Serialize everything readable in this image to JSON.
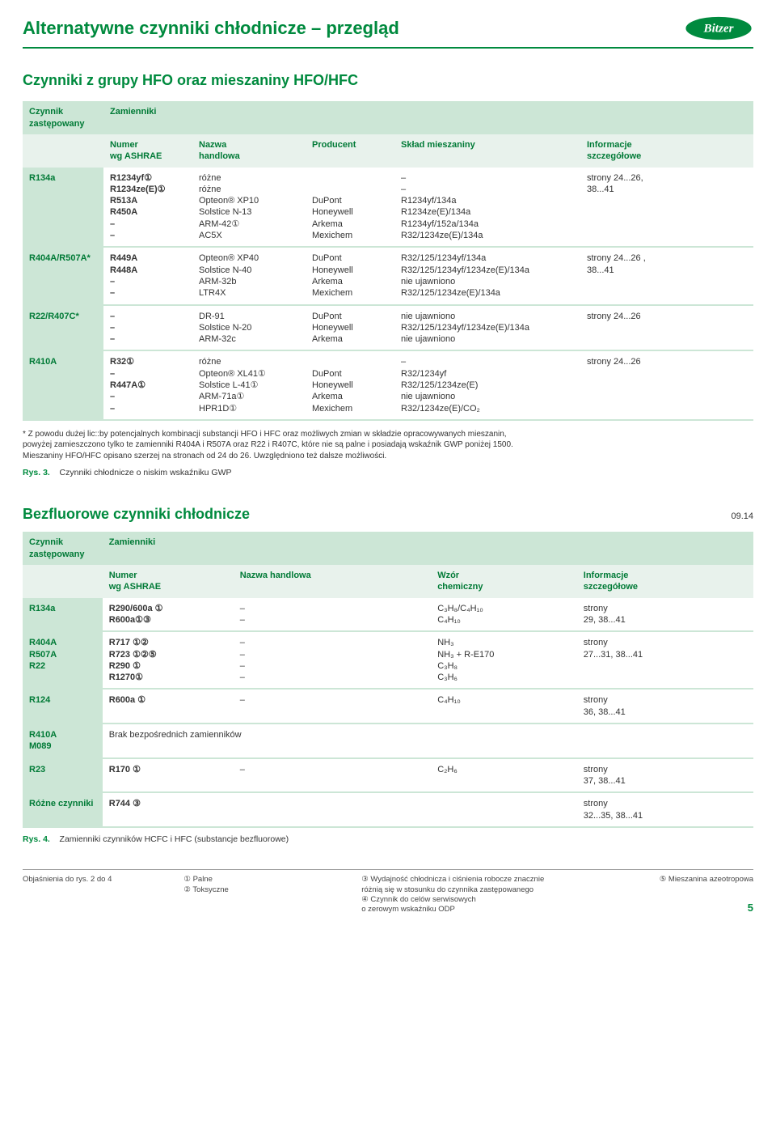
{
  "colors": {
    "accent": "#008a3e",
    "header_bg": "#cce6d6",
    "header_text": "#007a36",
    "row_border": "#cce6d6",
    "text": "#333333",
    "background": "#ffffff"
  },
  "typography": {
    "title_fontsize": 22,
    "section_fontsize": 18,
    "body_fontsize": 11,
    "footnote_fontsize": 10,
    "footer_fontsize": 9.5
  },
  "logo_name": "Bitzer",
  "header": {
    "title": "Alternatywne czynniki chłodnicze – przegląd"
  },
  "section1": {
    "title": "Czynniki z grupy HFO oraz mieszaniny HFO/HFC",
    "col_labels": {
      "c1a": "Czynnik",
      "c1b": "zastępowany",
      "c2": "Zamienniki",
      "sub_c2a": "Numer",
      "sub_c2b": "wg ASHRAE",
      "sub_c3a": "Nazwa",
      "sub_c3b": "handlowa",
      "sub_c4": "Producent",
      "sub_c5": "Skład mieszaniny",
      "sub_c6a": "Informacje",
      "sub_c6b": "szczegółowe"
    },
    "rows": [
      {
        "c1": "R134a",
        "c2": [
          "R1234yf①",
          "R1234ze(E)①",
          "R513A",
          "R450A",
          "–",
          "–"
        ],
        "c3": [
          "różne",
          "różne",
          "Opteon® XP10",
          "Solstice N-13",
          "ARM-42①",
          "AC5X"
        ],
        "c4": [
          "",
          "",
          "DuPont",
          "Honeywell",
          "Arkema",
          "Mexichem"
        ],
        "c5": [
          "–",
          "–",
          "R1234yf/134a",
          "R1234ze(E)/134a",
          "R1234yf/152a/134a",
          "R32/1234ze(E)/134a"
        ],
        "c6": "strony 24...26,\n38...41"
      },
      {
        "c1": "R404A/R507A*",
        "c2": [
          "R449A",
          "R448A",
          "–",
          "–"
        ],
        "c3": [
          "Opteon® XP40",
          "Solstice N-40",
          "ARM-32b",
          "LTR4X"
        ],
        "c4": [
          "DuPont",
          "Honeywell",
          "Arkema",
          "Mexichem"
        ],
        "c5": [
          "R32/125/1234yf/134a",
          "R32/125/1234yf/1234ze(E)/134a",
          "nie ujawniono",
          "R32/125/1234ze(E)/134a"
        ],
        "c6": "strony 24...26 ,\n38...41"
      },
      {
        "c1": "R22/R407C*",
        "c2": [
          "–",
          "–",
          "–"
        ],
        "c3": [
          "DR-91",
          "Solstice N-20",
          "ARM-32c"
        ],
        "c4": [
          "DuPont",
          "Honeywell",
          "Arkema"
        ],
        "c5": [
          "nie ujawniono",
          "R32/125/1234yf/1234ze(E)/134a",
          "nie ujawniono"
        ],
        "c6": "strony 24...26"
      },
      {
        "c1": "R410A",
        "c2": [
          "R32①",
          "–",
          "R447A①",
          "–",
          "–"
        ],
        "c3": [
          "różne",
          "Opteon® XL41①",
          "Solstice L-41①",
          "ARM-71a①",
          "HPR1D①"
        ],
        "c4": [
          "",
          "DuPont",
          "Honeywell",
          "Arkema",
          "Mexichem"
        ],
        "c5": [
          "–",
          "R32/1234yf",
          "R32/125/1234ze(E)",
          "nie ujawniono",
          "R32/1234ze(E)/CO₂"
        ],
        "c6": "strony 24...26"
      }
    ],
    "footnote": "* Z powodu dużej lic::by potencjalnych kombinacji substancji HFO i HFC oraz możliwych zmian w składzie opracowywanych mieszanin,\n  powyżej zamieszczono tylko te zamienniki R404A i R507A oraz R22 i R407C, które nie są palne i posiadają wskaźnik GWP poniżej 1500.\n  Mieszaniny HFO/HFC opisano szerzej na stronach od 24 do 26. Uwzględniono też dalsze możliwości.",
    "rys_label": "Rys. 3.",
    "rys_text": "Czynniki chłodnicze o niskim wskaźniku GWP"
  },
  "section2": {
    "title": "Bezfluorowe czynniki chłodnicze",
    "date": "09.14",
    "col_labels": {
      "c1a": "Czynnik",
      "c1b": "zastępowany",
      "c2": "Zamienniki",
      "sub_c2a": "Numer",
      "sub_c2b": "wg ASHRAE",
      "sub_c3": "Nazwa handlowa",
      "sub_c4a": "Wzór",
      "sub_c4b": "chemiczny",
      "sub_c5a": "Informacje",
      "sub_c5b": "szczegółowe"
    },
    "rows": [
      {
        "c1": "R134a",
        "c2": [
          "R290/600a ①",
          "R600a①③"
        ],
        "c3": [
          "–",
          "–"
        ],
        "c4": [
          "C₃H₈/C₄H₁₀",
          "C₄H₁₀"
        ],
        "c5": "strony\n29, 38...41"
      },
      {
        "c1": "R404A\nR507A\nR22",
        "c2": [
          "R717 ①②",
          "R723 ①②⑤",
          "R290 ①",
          "R1270①"
        ],
        "c3": [
          "–",
          "–",
          "–",
          "–"
        ],
        "c4": [
          "NH₃",
          "NH₃ + R-E170",
          "C₃H₈",
          "C₃H₆"
        ],
        "c5": "strony\n27...31, 38...41"
      },
      {
        "c1": "R124",
        "c2": [
          "R600a ①"
        ],
        "c3": [
          "–"
        ],
        "c4": [
          "C₄H₁₀"
        ],
        "c5": "strony\n36, 38...41"
      },
      {
        "c1": "R410A\nM089",
        "c2_text": "Brak bezpośrednich zamienników",
        "c5": ""
      },
      {
        "c1": "R23",
        "c2": [
          "R170 ①"
        ],
        "c3": [
          "–"
        ],
        "c4": [
          "C₂H₆"
        ],
        "c5": "strony\n37, 38...41"
      },
      {
        "c1": "Różne czynniki",
        "c2": [
          "R744 ③"
        ],
        "c3": [
          ""
        ],
        "c4": [
          ""
        ],
        "c5": "strony\n32...35, 38...41"
      }
    ],
    "rys_label": "Rys. 4.",
    "rys_text": "Zamienniki czynników HCFC i HFC (substancje bezfluorowe)"
  },
  "footer": {
    "left": "Objaśnienia do rys. 2 do 4",
    "mid1_1": "① Palne",
    "mid1_2": "② Toksyczne",
    "mid2_1": "③ Wydajność chłodnicza i ciśnienia robocze znacznie",
    "mid2_2": "   różnią się w stosunku do czynnika zastępowanego",
    "mid2_3": "④ Czynnik do celów serwisowych",
    "mid2_4": "   o zerowym wskaźniku ODP",
    "right": "⑤ Mieszanina azeotropowa"
  },
  "page_number": "5"
}
